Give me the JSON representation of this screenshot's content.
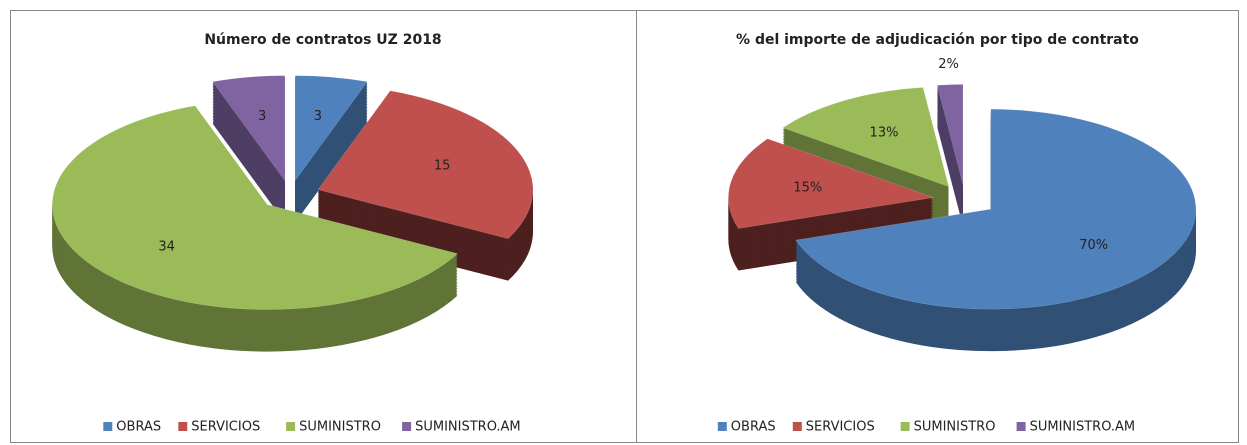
{
  "chart_data": [
    {
      "type": "pie",
      "title": "Número de contratos UZ 2018",
      "categories": [
        "OBRAS",
        "SERVICIOS",
        "SUMINISTRO",
        "SUMINISTRO.AM"
      ],
      "values": [
        3,
        15,
        34,
        3
      ],
      "colors": [
        "#4f81bd",
        "#c0504d",
        "#9bbb59",
        "#8064a2"
      ],
      "legend": "bottom"
    },
    {
      "type": "pie",
      "title": "% del importe de adjudicación por tipo de contrato",
      "categories": [
        "OBRAS",
        "SERVICIOS",
        "SUMINISTRO",
        "SUMINISTRO.AM"
      ],
      "values": [
        70,
        15,
        13,
        2
      ],
      "value_labels": [
        "70%",
        "15%",
        "13%",
        "2%"
      ],
      "colors": [
        "#4f81bd",
        "#c0504d",
        "#9bbb59",
        "#8064a2"
      ],
      "legend": "bottom"
    }
  ]
}
